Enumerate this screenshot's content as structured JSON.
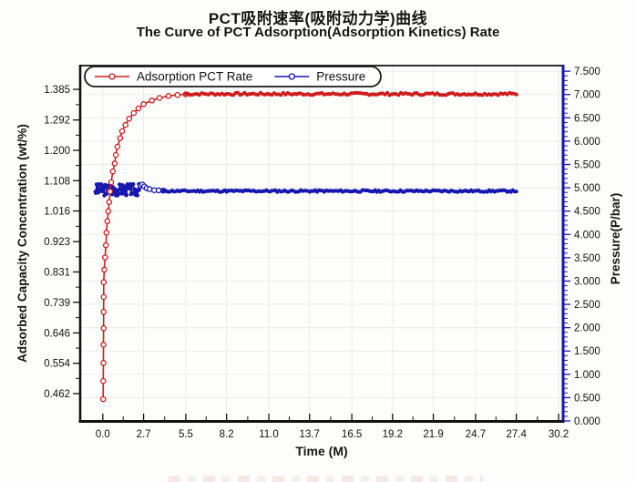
{
  "title": {
    "zh": "PCT吸附速率(吸附动力学)曲线",
    "en": "The Curve of PCT Adsorption(Adsorption Kinetics) Rate"
  },
  "colors": {
    "adsorption_red": "#cf1c1c",
    "pressure_blue": "#1717b0",
    "axis_black": "#111111",
    "grid": "#ecece7",
    "legend_border": "#1a1a1a"
  },
  "chart_data": {
    "type": "line",
    "title": "PCT吸附速率(吸附动力学)曲线",
    "subtitle": "The Curve of PCT Adsorption(Adsorption Kinetics) Rate",
    "xlabel": "Time (M)",
    "ylabel_left": "Adsorbed Capacity Concentration (wt/%)",
    "ylabel_right": "Pressure(P/bar)",
    "grid": true,
    "legend": {
      "position": "top-left",
      "items": [
        "Adsorption PCT Rate",
        "Pressure"
      ]
    },
    "axes": {
      "x": {
        "min": -1.5,
        "max": 30.5,
        "ticks": [
          0.0,
          2.7,
          5.5,
          8.2,
          11.0,
          13.7,
          16.5,
          19.2,
          21.9,
          24.7,
          27.4,
          30.2
        ],
        "labels": [
          "0.0",
          "2.7",
          "5.5",
          "8.2",
          "11.0",
          "13.7",
          "16.5",
          "19.2",
          "21.9",
          "24.7",
          "27.4",
          "30.2"
        ]
      },
      "left": {
        "min": 0.379,
        "max": 1.457,
        "ticks": [
          0.462,
          0.554,
          0.646,
          0.739,
          0.831,
          0.923,
          1.016,
          1.108,
          1.2,
          1.292,
          1.385
        ],
        "labels": [
          "0.462",
          "0.554",
          "0.646",
          "0.739",
          "0.831",
          "0.923",
          "1.016",
          "1.108",
          "1.200",
          "1.292",
          "1.385"
        ]
      },
      "right": {
        "min": 0.0,
        "max": 7.62,
        "ticks": [
          0.0,
          0.5,
          1.0,
          1.5,
          2.0,
          2.5,
          3.0,
          3.5,
          4.0,
          4.5,
          5.0,
          5.5,
          6.0,
          6.5,
          7.0,
          7.5
        ],
        "labels": [
          "0.000",
          "0.500",
          "1.000",
          "1.500",
          "2.000",
          "2.500",
          "3.000",
          "3.500",
          "4.000",
          "4.500",
          "5.000",
          "5.500",
          "6.000",
          "6.500",
          "7.000",
          "7.500"
        ],
        "minor_step": 0.1
      }
    },
    "series": [
      {
        "name": "Pressure",
        "color": "#1717b0",
        "axis": "right",
        "noisy_band": {
          "from": -0.5,
          "to": 2.45,
          "base": 4.96,
          "noise": 0.13,
          "step": 0.04,
          "seed": 3
        },
        "points": [
          [
            2.5,
            5.05
          ],
          [
            2.62,
            5.07
          ],
          [
            2.75,
            5.03
          ],
          [
            2.9,
            4.99
          ],
          [
            3.1,
            4.97
          ],
          [
            3.4,
            4.95
          ],
          [
            3.7,
            4.945
          ],
          [
            4.0,
            4.94
          ]
        ],
        "plateau": {
          "from": 4.0,
          "to": 27.4,
          "value": 4.93,
          "noise": 0.02,
          "step": 0.12,
          "seed": 11
        }
      },
      {
        "name": "Adsorption PCT Rate",
        "color": "#cf1c1c",
        "axis": "left",
        "points": [
          [
            0.02,
            0.445
          ],
          [
            0.03,
            0.5
          ],
          [
            0.04,
            0.555
          ],
          [
            0.04,
            0.61
          ],
          [
            0.05,
            0.66
          ],
          [
            0.05,
            0.71
          ],
          [
            0.06,
            0.755
          ],
          [
            0.06,
            0.8
          ],
          [
            0.1,
            0.838
          ],
          [
            0.15,
            0.875
          ],
          [
            0.2,
            0.912
          ],
          [
            0.24,
            0.95
          ],
          [
            0.3,
            0.985
          ],
          [
            0.36,
            1.015
          ],
          [
            0.42,
            1.043
          ],
          [
            0.48,
            1.075
          ],
          [
            0.55,
            1.103
          ],
          [
            0.66,
            1.136
          ],
          [
            0.78,
            1.16
          ],
          [
            0.86,
            1.186
          ],
          [
            0.97,
            1.211
          ],
          [
            1.15,
            1.237
          ],
          [
            1.28,
            1.258
          ],
          [
            1.5,
            1.277
          ],
          [
            1.75,
            1.296
          ],
          [
            2.05,
            1.313
          ],
          [
            2.36,
            1.327
          ],
          [
            2.7,
            1.34
          ],
          [
            3.25,
            1.351
          ],
          [
            3.75,
            1.359
          ],
          [
            4.35,
            1.365
          ],
          [
            4.95,
            1.368
          ],
          [
            5.5,
            1.37
          ]
        ],
        "plateau": {
          "from": 5.5,
          "to": 27.4,
          "value": 1.371,
          "noise": 0.0035,
          "step": 0.15,
          "seed": 7
        }
      }
    ]
  }
}
